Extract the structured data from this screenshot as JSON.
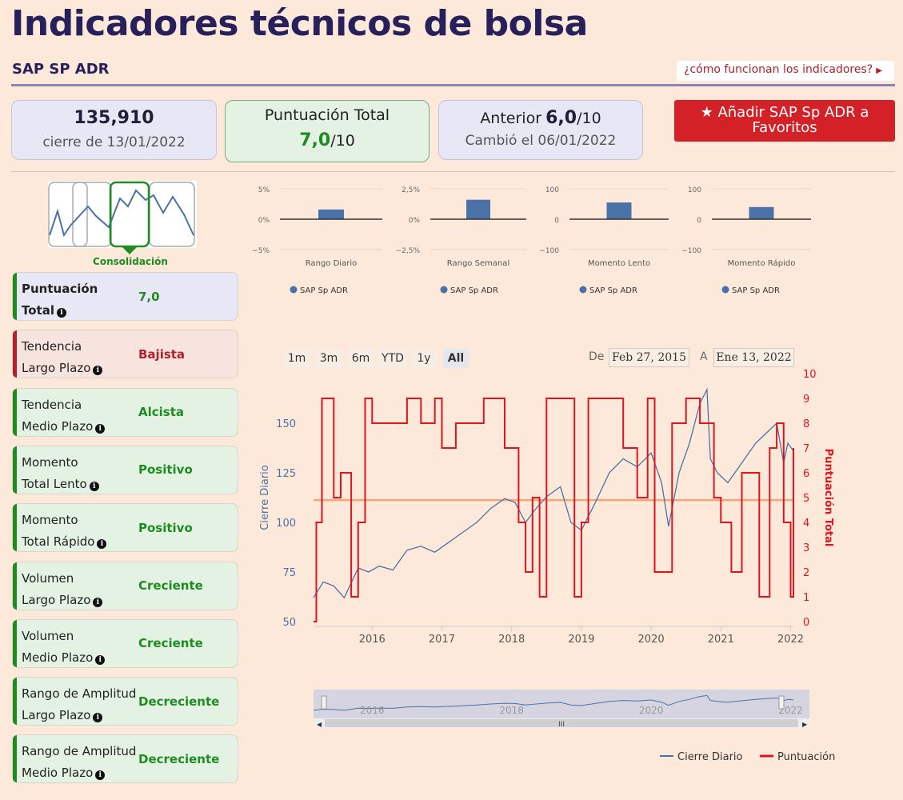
{
  "page": {
    "title": "Indicadores técnicos de bolsa",
    "ticker": "SAP SP ADR",
    "how_link": "¿cómo funcionan los indicadores?"
  },
  "summary": {
    "price": "135,910",
    "close_label": "cierre de 13/01/2022",
    "score_title": "Puntuación Total",
    "score_value": "7,0",
    "score_scale": "/10",
    "prev_label": "Anterior",
    "prev_value": "6,0",
    "prev_scale": "/10",
    "changed_label": "Cambió el 06/01/2022"
  },
  "favorite_button": "Añadir SAP Sp ADR a Favoritos",
  "pattern": {
    "label": "Consolidación",
    "color": "#1f8c22"
  },
  "colors": {
    "bull": "#1f8c22",
    "bear": "#b0222b",
    "navy": "#27205b",
    "price_line": "#4a72a8",
    "score_line": "#e0141e"
  },
  "indicators": [
    {
      "line1": "Puntuación",
      "line2": "Total",
      "value": "7,0",
      "tone": "total"
    },
    {
      "line1": "Tendencia",
      "line2": "Largo Plazo",
      "value": "Bajista",
      "tone": "bear"
    },
    {
      "line1": "Tendencia",
      "line2": "Medio Plazo",
      "value": "Alcista",
      "tone": "bull"
    },
    {
      "line1": "Momento",
      "line2": "Total Lento",
      "value": "Positivo",
      "tone": "bull"
    },
    {
      "line1": "Momento",
      "line2": "Total Rápido",
      "value": "Positivo",
      "tone": "bull"
    },
    {
      "line1": "Volumen",
      "line2": "Largo Plazo",
      "value": "Creciente",
      "tone": "bull"
    },
    {
      "line1": "Volumen",
      "line2": "Medio Plazo",
      "value": "Creciente",
      "tone": "bull"
    },
    {
      "line1": "Rango de Amplitud",
      "line2": "Largo Plazo",
      "value": "Decreciente",
      "tone": "bull"
    },
    {
      "line1": "Rango de Amplitud",
      "line2": "Medio Plazo",
      "value": "Decreciente",
      "tone": "bull"
    }
  ],
  "range_selector": {
    "buttons": [
      "1m",
      "3m",
      "6m",
      "YTD",
      "1y",
      "All"
    ],
    "selected": "All",
    "from_label": "De",
    "from_value": "Feb 27, 2015",
    "to_label": "A",
    "to_value": "Ene 13, 2022"
  },
  "chart_data": [
    {
      "type": "bar",
      "title": "",
      "xlabel": "Rango Diario",
      "series": [
        {
          "name": "SAP Sp ADR",
          "values": [
            1.6
          ]
        }
      ],
      "ylim": [
        -5,
        5
      ],
      "ticks": [
        "5%",
        "0%",
        "-5%"
      ]
    },
    {
      "type": "bar",
      "title": "",
      "xlabel": "Rango Semanal",
      "series": [
        {
          "name": "SAP Sp ADR",
          "values": [
            1.6
          ]
        }
      ],
      "ylim": [
        -2.5,
        2.5
      ],
      "ticks": [
        "2,5%",
        "0%",
        "-2,5%"
      ]
    },
    {
      "type": "bar",
      "title": "",
      "xlabel": "Momento Lento",
      "series": [
        {
          "name": "SAP Sp ADR",
          "values": [
            55
          ]
        }
      ],
      "ylim": [
        -100,
        100
      ],
      "ticks": [
        "100",
        "0",
        "-100"
      ]
    },
    {
      "type": "bar",
      "title": "",
      "xlabel": "Momento Rápido",
      "series": [
        {
          "name": "SAP Sp ADR",
          "values": [
            40
          ]
        }
      ],
      "ylim": [
        -100,
        100
      ],
      "ticks": [
        "100",
        "0",
        "-100"
      ]
    },
    {
      "type": "line",
      "title": "",
      "xlabel": "",
      "ylabel": "Cierre Diario",
      "y2label": "Puntuación Total",
      "ylim": [
        50,
        175
      ],
      "y2lim": [
        0,
        10
      ],
      "yticks": [
        50,
        75,
        100,
        125,
        150
      ],
      "y2ticks": [
        0,
        1,
        2,
        3,
        4,
        5,
        6,
        7,
        8,
        9,
        10
      ],
      "xticks": [
        "2016",
        "2017",
        "2018",
        "2019",
        "2020",
        "2021",
        "2022"
      ],
      "xlim": [
        2015.16,
        2022.04
      ],
      "reference_line": 4.9,
      "legend": "bottom-right",
      "series": [
        {
          "name": "Cierre Diario",
          "color": "#4a72a8",
          "x": [
            2015.16,
            2015.3,
            2015.45,
            2015.6,
            2015.8,
            2015.95,
            2016.1,
            2016.3,
            2016.5,
            2016.7,
            2016.9,
            2017.1,
            2017.3,
            2017.5,
            2017.7,
            2017.9,
            2018.05,
            2018.2,
            2018.35,
            2018.5,
            2018.7,
            2018.85,
            2019.0,
            2019.2,
            2019.4,
            2019.6,
            2019.8,
            2020.0,
            2020.15,
            2020.25,
            2020.4,
            2020.55,
            2020.7,
            2020.8,
            2020.85,
            2020.95,
            2021.1,
            2021.3,
            2021.5,
            2021.65,
            2021.8,
            2021.9,
            2021.96,
            2022.04
          ],
          "values": [
            62,
            70,
            68,
            62,
            77,
            75,
            78,
            76,
            86,
            88,
            85,
            90,
            95,
            100,
            107,
            112,
            110,
            100,
            107,
            113,
            118,
            100,
            96,
            110,
            125,
            132,
            128,
            135,
            120,
            98,
            125,
            140,
            160,
            167,
            132,
            125,
            120,
            130,
            140,
            145,
            150,
            130,
            140,
            136
          ]
        },
        {
          "name": "Puntuación",
          "color": "#e0141e",
          "x": [
            2015.16,
            2015.2,
            2015.28,
            2015.45,
            2015.55,
            2015.7,
            2015.8,
            2015.9,
            2016.0,
            2016.5,
            2016.7,
            2016.9,
            2017.0,
            2017.2,
            2017.4,
            2017.6,
            2017.9,
            2018.1,
            2018.2,
            2018.3,
            2018.4,
            2018.5,
            2018.7,
            2018.9,
            2019.0,
            2019.1,
            2019.4,
            2019.6,
            2019.8,
            2019.95,
            2020.05,
            2020.15,
            2020.3,
            2020.5,
            2020.7,
            2020.9,
            2021.0,
            2021.15,
            2021.3,
            2021.55,
            2021.7,
            2021.8,
            2021.9,
            2022.0,
            2022.04
          ],
          "values": [
            0,
            4,
            9,
            5,
            6,
            1,
            4,
            9,
            8,
            9,
            8,
            9,
            7,
            8,
            8,
            9,
            7,
            4,
            2,
            5,
            1,
            9,
            9,
            1,
            4,
            9,
            9,
            7,
            5,
            9,
            2,
            2,
            8,
            9,
            8,
            5,
            4,
            2,
            6,
            1,
            7,
            8,
            4,
            1,
            7
          ]
        }
      ],
      "navigator_xticks": [
        "2016",
        "2018",
        "2020",
        "2022"
      ]
    }
  ],
  "bar_legend_label": "SAP Sp ADR",
  "main_legend": {
    "price": "Cierre Diario",
    "score": "Puntuación"
  }
}
